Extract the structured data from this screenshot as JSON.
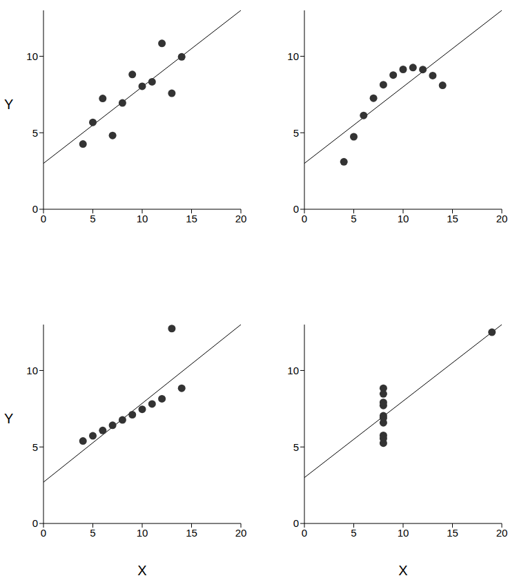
{
  "chart_data": [
    {
      "type": "scatter",
      "y_label": "Y",
      "color": "#333333",
      "xlim": [
        0,
        20
      ],
      "ylim": [
        0,
        13
      ],
      "xticks": [
        0,
        5,
        10,
        15,
        20
      ],
      "yticks": [
        0,
        5,
        10
      ],
      "x": [
        10,
        8,
        13,
        9,
        11,
        14,
        6,
        4,
        12,
        7,
        5
      ],
      "y": [
        8.04,
        6.95,
        7.58,
        8.81,
        8.33,
        9.96,
        7.24,
        4.26,
        10.84,
        4.82,
        5.68
      ],
      "fit_line": {
        "x": [
          0,
          20
        ],
        "y": [
          3,
          13
        ]
      }
    },
    {
      "type": "scatter",
      "color": "#333333",
      "xlim": [
        0,
        20
      ],
      "ylim": [
        0,
        13
      ],
      "xticks": [
        0,
        5,
        10,
        15,
        20
      ],
      "yticks": [
        0,
        5,
        10
      ],
      "x": [
        10,
        8,
        13,
        9,
        11,
        14,
        6,
        4,
        12,
        7,
        5
      ],
      "y": [
        9.14,
        8.14,
        8.74,
        8.77,
        9.26,
        8.1,
        6.13,
        3.1,
        9.13,
        7.26,
        4.74
      ],
      "fit_line": {
        "x": [
          0,
          20
        ],
        "y": [
          3,
          13
        ]
      }
    },
    {
      "type": "scatter",
      "y_label": "Y",
      "x_label": "X",
      "color": "#333333",
      "xlim": [
        0,
        20
      ],
      "ylim": [
        0,
        13
      ],
      "xticks": [
        0,
        5,
        10,
        15,
        20
      ],
      "yticks": [
        0,
        5,
        10
      ],
      "x": [
        10,
        8,
        13,
        9,
        11,
        14,
        6,
        4,
        12,
        7,
        5
      ],
      "y": [
        7.46,
        6.77,
        12.74,
        7.11,
        7.81,
        8.84,
        6.08,
        5.39,
        8.15,
        6.42,
        5.73
      ],
      "fit_line": {
        "x": [
          0,
          20
        ],
        "y": [
          2.7,
          13
        ]
      }
    },
    {
      "type": "scatter",
      "x_label": "X",
      "color": "#333333",
      "xlim": [
        0,
        20
      ],
      "ylim": [
        0,
        13
      ],
      "xticks": [
        0,
        5,
        10,
        15,
        20
      ],
      "yticks": [
        0,
        5,
        10
      ],
      "x": [
        8,
        8,
        8,
        8,
        8,
        8,
        8,
        19,
        8,
        8,
        8
      ],
      "y": [
        6.58,
        5.76,
        7.71,
        8.84,
        8.47,
        7.04,
        5.25,
        12.5,
        5.56,
        7.91,
        6.89
      ],
      "fit_line": {
        "x": [
          0,
          20
        ],
        "y": [
          3,
          13
        ]
      }
    }
  ]
}
